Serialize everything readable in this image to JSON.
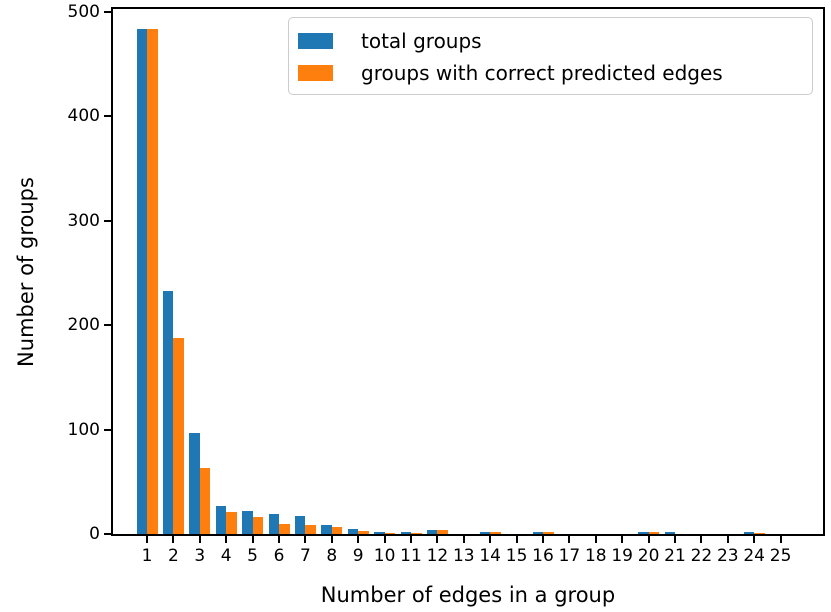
{
  "chart_data": {
    "type": "bar",
    "title": "",
    "xlabel": "Number of edges in a group",
    "ylabel": "Number of groups",
    "categories": [
      1,
      2,
      3,
      4,
      5,
      6,
      7,
      8,
      9,
      10,
      11,
      12,
      13,
      14,
      15,
      16,
      17,
      18,
      19,
      20,
      21,
      22,
      23,
      24,
      25
    ],
    "series": [
      {
        "name": "total groups",
        "color": "#1f77b4",
        "values": [
          483,
          233,
          97,
          27,
          22,
          19,
          17,
          9,
          5,
          2,
          2,
          4,
          0,
          2,
          0,
          2,
          0,
          0,
          0,
          2,
          2,
          0,
          0,
          2,
          0
        ]
      },
      {
        "name": "groups with correct predicted edges",
        "color": "#ff7f0e",
        "values": [
          483,
          188,
          63,
          21,
          16,
          10,
          9,
          7,
          3,
          1,
          1,
          4,
          0,
          2,
          0,
          2,
          0,
          0,
          0,
          2,
          0,
          0,
          0,
          1,
          0
        ]
      }
    ],
    "ylim": [
      0,
      500
    ],
    "yticks": [
      0,
      100,
      200,
      300,
      400,
      500
    ],
    "grid": false,
    "legend_position": "upper right inside plot",
    "axis_color": "#000000",
    "background_color": "#ffffff"
  }
}
